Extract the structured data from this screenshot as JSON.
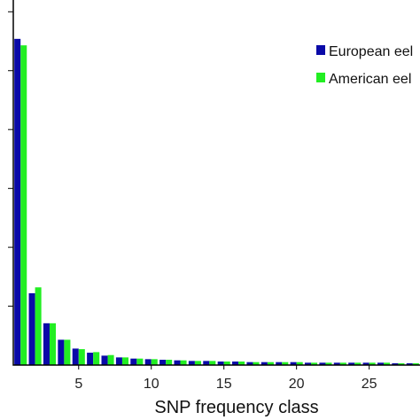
{
  "chart_data": {
    "type": "bar",
    "xlabel": "SNP frequency class",
    "ylabel": "",
    "x": [
      1,
      2,
      3,
      4,
      5,
      6,
      7,
      8,
      9,
      10,
      11,
      12,
      13,
      14,
      15,
      16,
      17,
      18,
      19,
      20,
      21,
      22,
      23,
      24,
      25,
      26,
      27,
      28
    ],
    "x_ticks": [
      "5",
      "10",
      "15",
      "20",
      "25"
    ],
    "x_tick_values": [
      5,
      10,
      15,
      20,
      25
    ],
    "xlim": [
      0.5,
      28.5
    ],
    "ylim": [
      0,
      0.62
    ],
    "legend_position": "top-right",
    "series": [
      {
        "name": "European eel",
        "color": "#0a0aa8",
        "values": [
          0.554,
          0.122,
          0.071,
          0.043,
          0.028,
          0.021,
          0.016,
          0.013,
          0.011,
          0.01,
          0.009,
          0.008,
          0.007,
          0.007,
          0.006,
          0.006,
          0.005,
          0.005,
          0.005,
          0.005,
          0.004,
          0.004,
          0.004,
          0.004,
          0.004,
          0.004,
          0.003,
          0.003
        ]
      },
      {
        "name": "American eel",
        "color": "#22ee22",
        "values": [
          0.543,
          0.132,
          0.071,
          0.043,
          0.027,
          0.022,
          0.017,
          0.013,
          0.011,
          0.01,
          0.009,
          0.008,
          0.007,
          0.007,
          0.006,
          0.006,
          0.005,
          0.005,
          0.005,
          0.005,
          0.004,
          0.004,
          0.004,
          0.004,
          0.004,
          0.004,
          0.003,
          0.003
        ]
      }
    ]
  }
}
